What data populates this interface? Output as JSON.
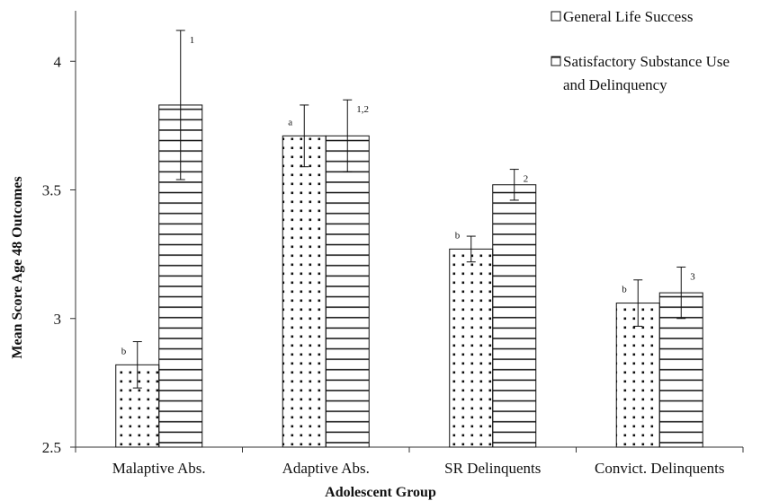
{
  "chart_data": {
    "type": "bar",
    "title": "",
    "xlabel": "Adolescent Group",
    "ylabel": "Mean Score Age 48 Outcomes",
    "ylim": [
      2.5,
      4.3
    ],
    "yticks": [
      "2.5",
      "3",
      "3.5",
      "4"
    ],
    "grid": false,
    "legend_position": "top-right",
    "categories": [
      "Malaptive Abs.",
      "Adaptive Abs.",
      "SR Delinquents",
      "Convict. Delinquents"
    ],
    "series": [
      {
        "name": "General Life Success",
        "pattern": "dots",
        "values": [
          2.82,
          3.71,
          3.27,
          3.06
        ],
        "error": [
          0.09,
          0.12,
          0.05,
          0.09
        ],
        "labels": [
          "b",
          "a",
          "b",
          "b"
        ]
      },
      {
        "name": "Satisfactory Substance Use and Delinquency",
        "legend_lines": [
          "Satisfactory Substance Use",
          "and Delinquency"
        ],
        "pattern": "horizontal-lines",
        "values": [
          3.83,
          3.71,
          3.52,
          3.1
        ],
        "error": [
          0.29,
          0.14,
          0.06,
          0.1
        ],
        "labels": [
          "1",
          "1,2",
          "2",
          "3"
        ]
      }
    ]
  },
  "colors": {
    "bar_fill": "#ffffff",
    "pattern": "#111111",
    "axis": "#333333"
  }
}
